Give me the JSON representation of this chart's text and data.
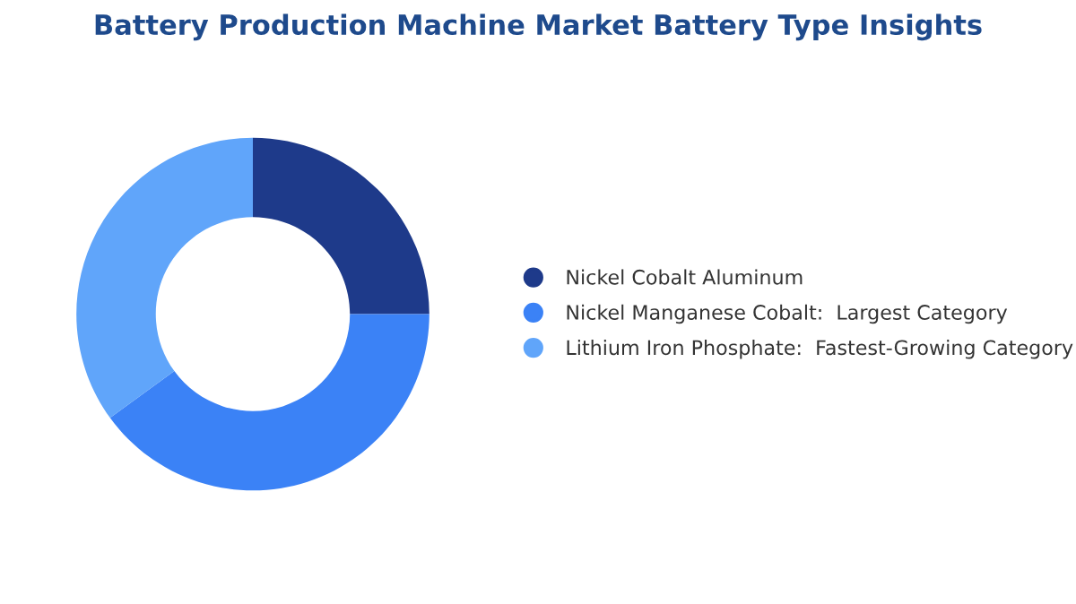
{
  "chart_data": {
    "type": "donut",
    "title": "Battery Production Machine Market Battery Type Insights",
    "categories": [
      "Nickel Cobalt Aluminum",
      "Nickel Manganese Cobalt:  Largest Category",
      "Lithium Iron Phosphate:  Fastest-Growing Category"
    ],
    "values": [
      25,
      40,
      35
    ],
    "colors": [
      "#1e3a8a",
      "#3b82f6",
      "#60a5fa"
    ],
    "legend": "right"
  }
}
